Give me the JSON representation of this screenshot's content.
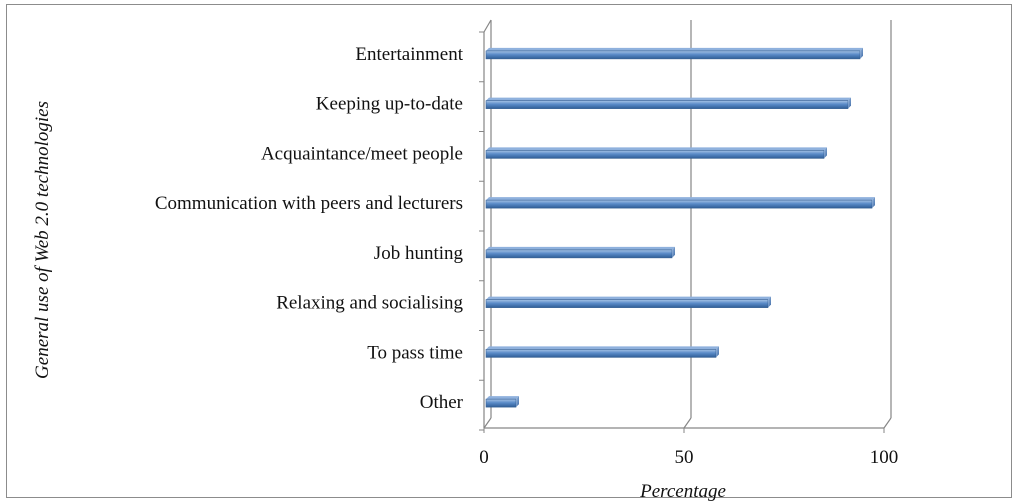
{
  "chart_data": {
    "type": "bar",
    "orientation": "horizontal",
    "categories": [
      "Entertainment",
      "Keeping up-to-date",
      "Acquaintance/meet people",
      "Communication with peers and lecturers",
      "Job hunting",
      "Relaxing and socialising",
      "To pass time",
      "Other"
    ],
    "values": [
      94,
      91,
      85,
      97,
      47,
      71,
      58,
      8
    ],
    "xlabel": "Percentage",
    "ylabel": "General use of Web  2.0 technologies",
    "xlim": [
      0,
      100
    ],
    "xticks": [
      "0",
      "50",
      "100"
    ],
    "grid": true,
    "bar_color": "#4f81bd"
  }
}
